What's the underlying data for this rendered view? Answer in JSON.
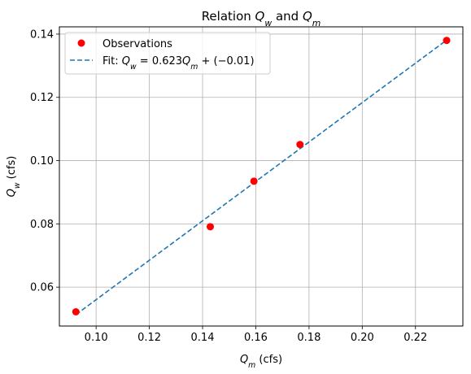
{
  "chart_data": {
    "type": "scatter",
    "title_parts": [
      {
        "t": "Relation ",
        "i": false
      },
      {
        "t": "Q",
        "i": true
      },
      {
        "t": "w",
        "i": true,
        "sub": true
      },
      {
        "t": " and ",
        "i": false
      },
      {
        "t": "Q",
        "i": true
      },
      {
        "t": "m",
        "i": true,
        "sub": true
      }
    ],
    "xlabel_parts": [
      {
        "t": "Q",
        "i": true
      },
      {
        "t": "m",
        "i": true,
        "sub": true
      },
      {
        "t": " (cfs)",
        "i": false
      }
    ],
    "ylabel_parts": [
      {
        "t": "Q",
        "i": true
      },
      {
        "t": "w",
        "i": true,
        "sub": true
      },
      {
        "t": " (cfs)",
        "i": false
      }
    ],
    "xlim": [
      0.0862,
      0.2378
    ],
    "ylim": [
      0.0477,
      0.1423
    ],
    "xticks": [
      0.1,
      0.12,
      0.14,
      0.16,
      0.18,
      0.2,
      0.22
    ],
    "xtick_labels": [
      "0.10",
      "0.12",
      "0.14",
      "0.16",
      "0.18",
      "0.20",
      "0.22"
    ],
    "yticks": [
      0.06,
      0.08,
      0.1,
      0.12,
      0.14
    ],
    "ytick_labels": [
      "0.06",
      "0.08",
      "0.10",
      "0.12",
      "0.14"
    ],
    "grid": true,
    "legend_position": "top-left",
    "series": [
      {
        "name": "Observations",
        "kind": "scatter",
        "color": "#ff0000",
        "x": [
          0.0924,
          0.1429,
          0.1593,
          0.1766,
          0.2317
        ],
        "y": [
          0.0522,
          0.0791,
          0.0935,
          0.1051,
          0.138
        ]
      },
      {
        "name": "Fit: Q_w = 0.623Q_m + (−0.01)",
        "name_parts": [
          {
            "t": "Fit:  ",
            "i": false
          },
          {
            "t": "Q",
            "i": true
          },
          {
            "t": "w",
            "i": true,
            "sub": true
          },
          {
            "t": " = 0.623",
            "i": false
          },
          {
            "t": "Q",
            "i": true
          },
          {
            "t": "m",
            "i": true,
            "sub": true
          },
          {
            "t": " + (−0.01)",
            "i": false
          }
        ],
        "kind": "line",
        "style": "dashed",
        "color": "#1f77b4",
        "x": [
          0.0924,
          0.2317
        ],
        "y": [
          0.0513,
          0.1381
        ]
      }
    ]
  }
}
